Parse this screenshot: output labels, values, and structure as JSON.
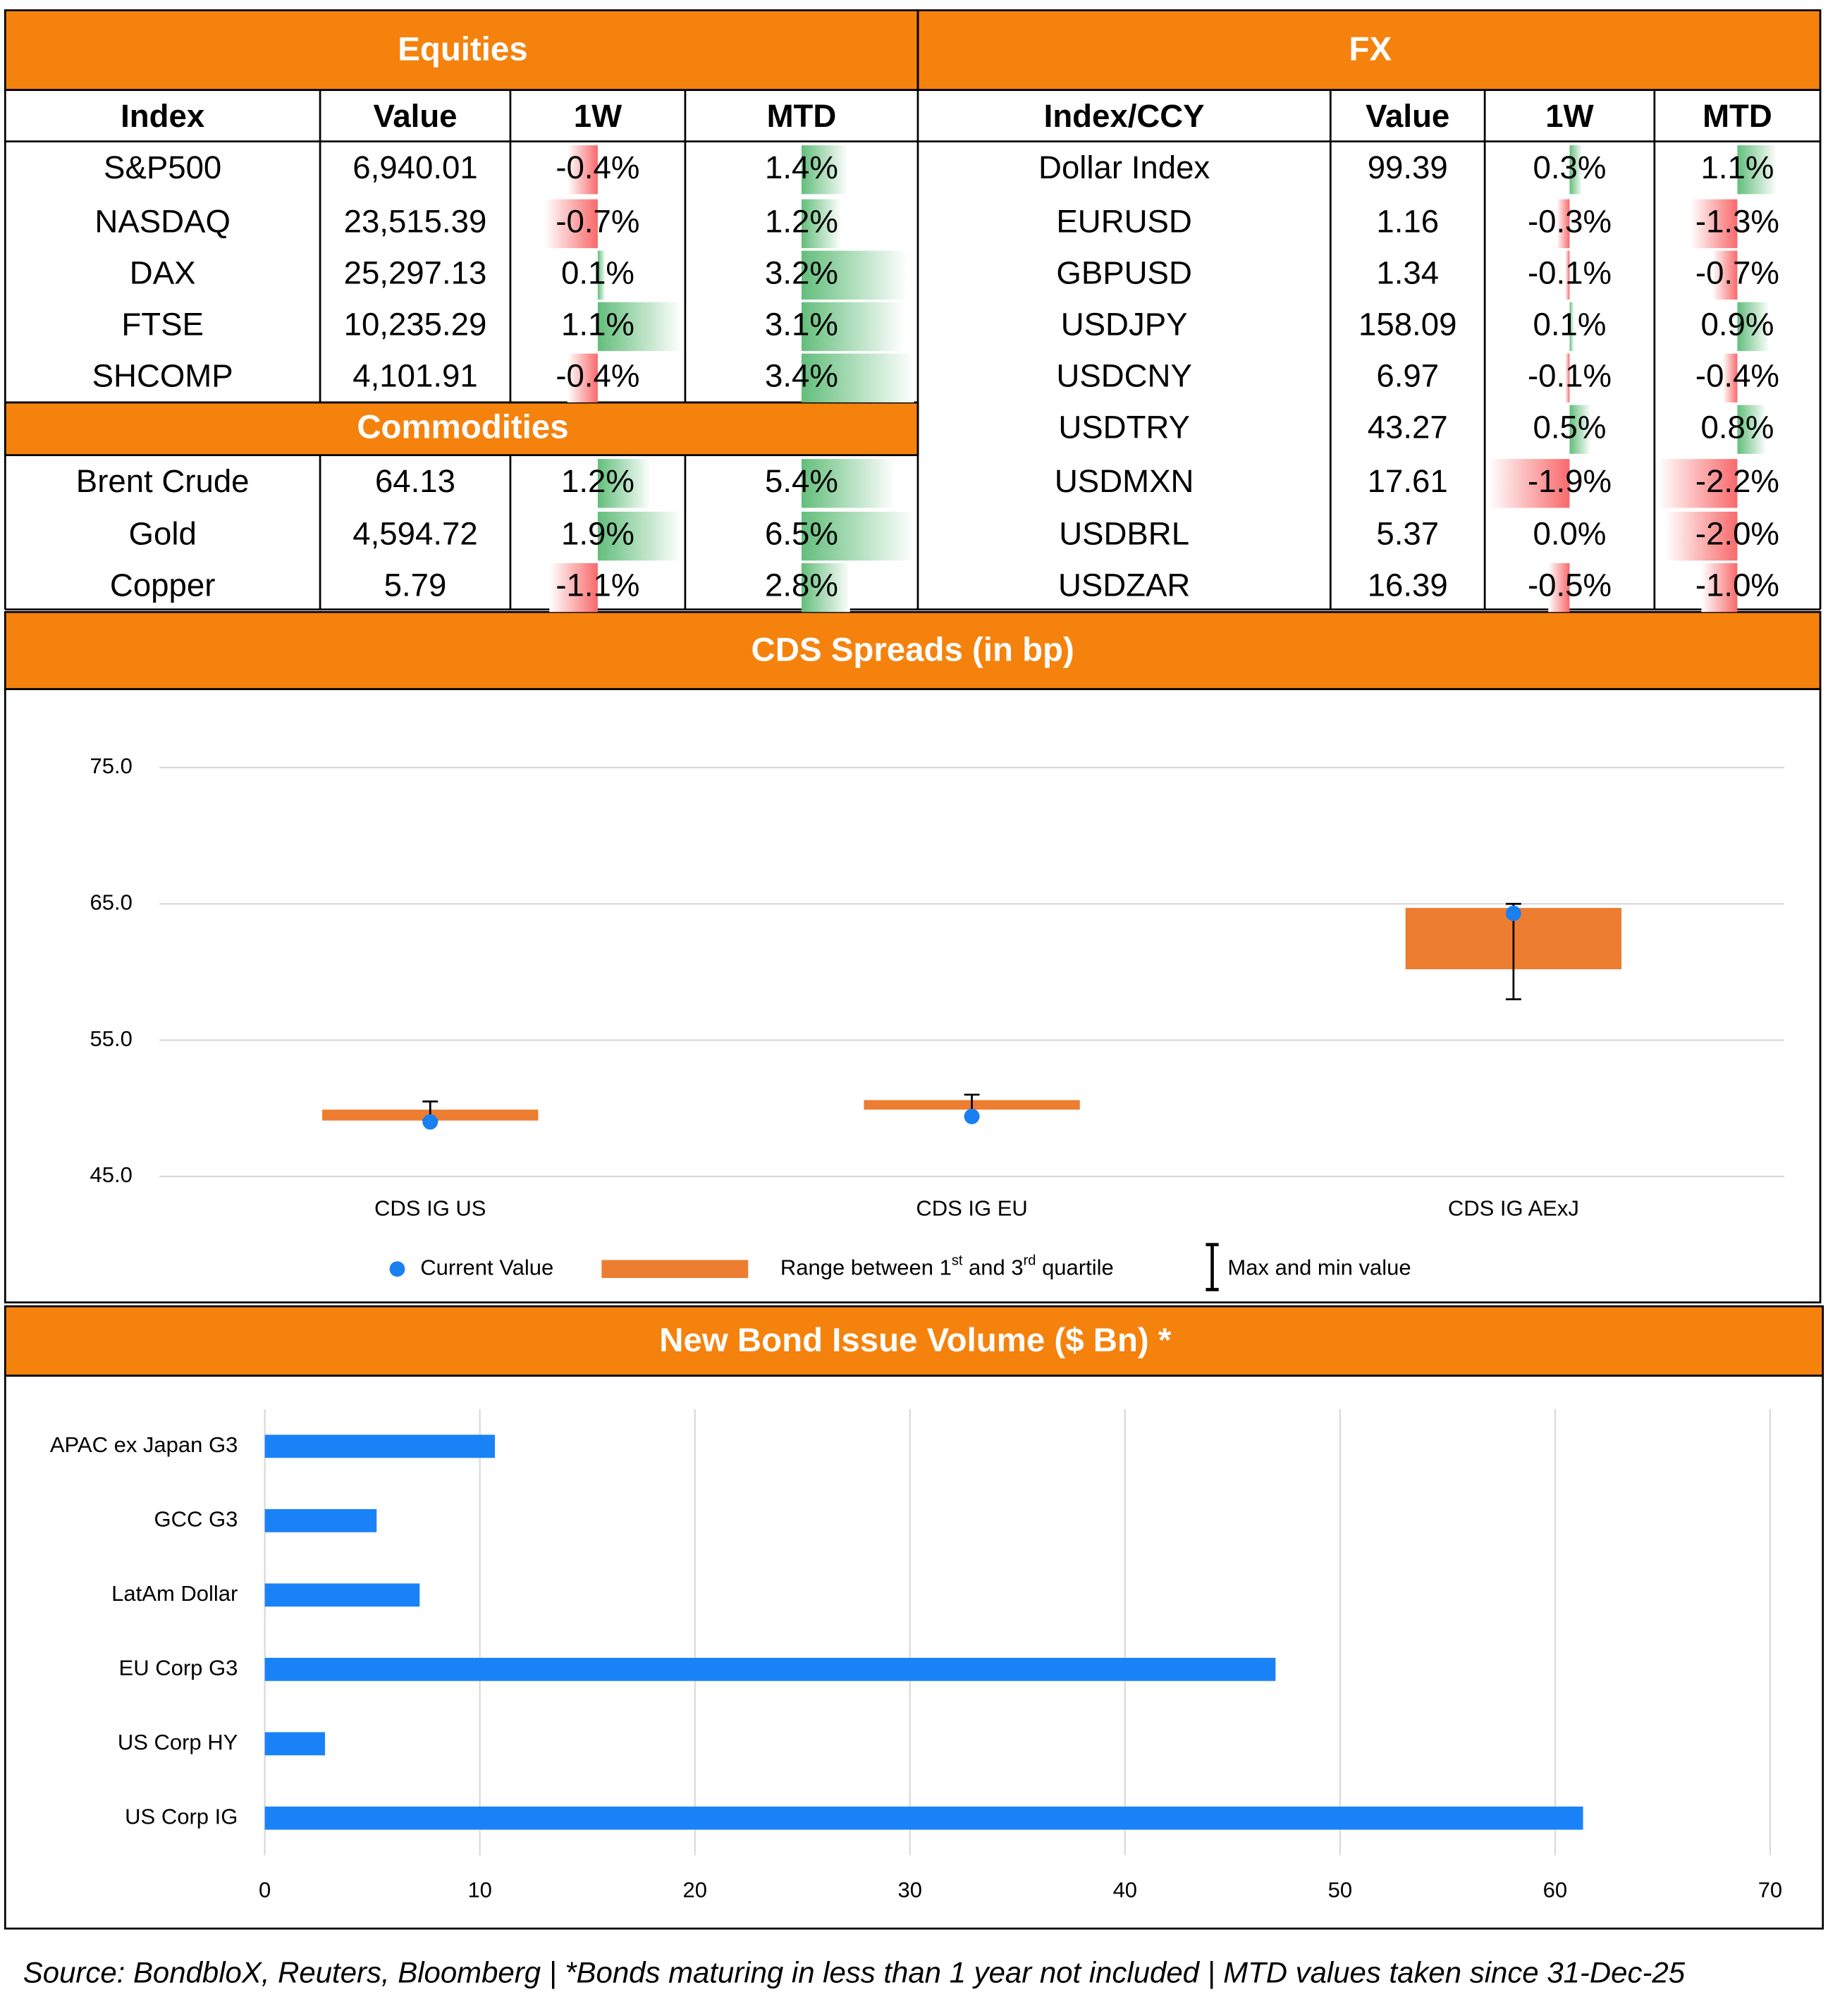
{
  "equities": {
    "title": "Equities",
    "columns": [
      "Index",
      "Value",
      "1W",
      "MTD"
    ],
    "rows": [
      [
        "S&P500",
        "6,940.01",
        "-0.4%",
        "1.4%"
      ],
      [
        "NASDAQ",
        "23,515.39",
        "-0.7%",
        "1.2%"
      ],
      [
        "DAX",
        "25,297.13",
        "0.1%",
        "3.2%"
      ],
      [
        "FTSE",
        "10,235.29",
        "1.1%",
        "3.1%"
      ],
      [
        "SHCOMP",
        "4,101.91",
        "-0.4%",
        "3.4%"
      ]
    ]
  },
  "commodities": {
    "title": "Commodities",
    "rows": [
      [
        "Brent Crude",
        "64.13",
        "1.2%",
        "5.4%"
      ],
      [
        "Gold",
        "4,594.72",
        "1.9%",
        "6.5%"
      ],
      [
        "Copper",
        "5.79",
        "-1.1%",
        "2.8%"
      ]
    ]
  },
  "fx": {
    "title": "FX",
    "columns": [
      "Index/CCY",
      "Value",
      "1W",
      "MTD"
    ],
    "rows": [
      [
        "Dollar Index",
        "99.39",
        "0.3%",
        "1.1%"
      ],
      [
        "EURUSD",
        "1.16",
        "-0.3%",
        "-1.3%"
      ],
      [
        "GBPUSD",
        "1.34",
        "-0.1%",
        "-0.7%"
      ],
      [
        "USDJPY",
        "158.09",
        "0.1%",
        "0.9%"
      ],
      [
        "USDCNY",
        "6.97",
        "-0.1%",
        "-0.4%"
      ],
      [
        "USDTRY",
        "43.27",
        "0.5%",
        "0.8%"
      ],
      [
        "USDMXN",
        "17.61",
        "-1.9%",
        "-2.2%"
      ],
      [
        "USDBRL",
        "5.37",
        "0.0%",
        "-2.0%"
      ],
      [
        "USDZAR",
        "16.39",
        "-0.5%",
        "-1.0%"
      ]
    ]
  },
  "chart_data": [
    {
      "type": "box",
      "title": "CDS Spreads (in bp)",
      "categories": [
        "CDS IG US",
        "CDS IG EU",
        "CDS IG AExJ"
      ],
      "ylim": [
        45,
        75
      ],
      "yticks": [
        {
          "value": 45,
          "label": "45.0"
        },
        {
          "value": 55,
          "label": "55.0"
        },
        {
          "value": 65,
          "label": "65.0"
        },
        {
          "value": 75,
          "label": "75.0"
        }
      ],
      "grid": true,
      "series": [
        {
          "name": "Current Value",
          "color": "#1a7ff0",
          "values": [
            49.0,
            49.4,
            64.3
          ]
        },
        {
          "name": "Range between 1st and 3rd quartile",
          "color": "#ed7d31",
          "low": [
            49.1,
            49.9,
            60.2
          ],
          "high": [
            49.9,
            50.6,
            64.7
          ]
        },
        {
          "name": "Max and min value",
          "color": "#000000",
          "min": [
            49.1,
            49.4,
            58.0
          ],
          "max": [
            50.5,
            51.0,
            65.0
          ]
        }
      ]
    },
    {
      "type": "hbar",
      "title": "New Bond Issue Volume ($ Bn) *",
      "categories": [
        "APAC ex Japan G3",
        "GCC G3",
        "LatAm Dollar",
        "EU Corp G3",
        "US Corp HY",
        "US Corp IG"
      ],
      "values": [
        10.7,
        5.2,
        7.2,
        47.0,
        2.8,
        61.3
      ],
      "color": "#1a82f7",
      "xlim": [
        0,
        70
      ],
      "xticks": [
        0,
        10,
        20,
        30,
        40,
        50,
        60,
        70
      ],
      "grid": true
    }
  ],
  "footer": "Source: BondbloX, Reuters, Bloomberg | *Bonds maturing in less than 1 year not included | MTD values taken since 31-Dec-25"
}
